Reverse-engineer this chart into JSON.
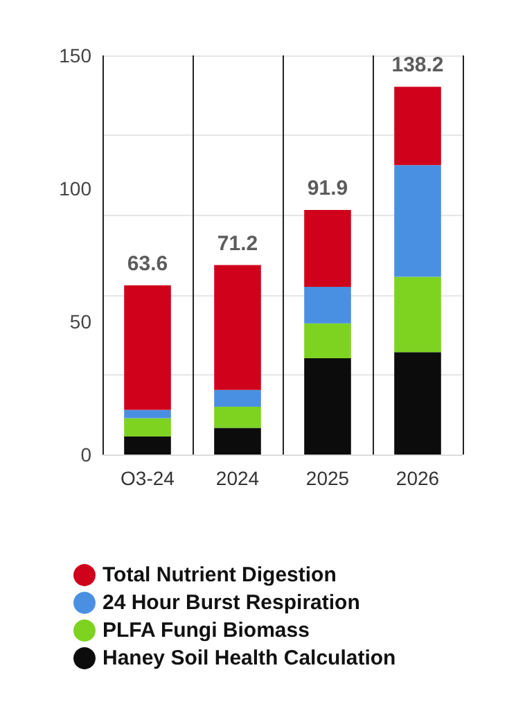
{
  "chart_data": {
    "type": "bar",
    "stacked": true,
    "categories": [
      "O3-24",
      "2024",
      "2025",
      "2026"
    ],
    "series": [
      {
        "name": "Haney Soil Health Calculation",
        "color": "#0c0c0c",
        "values": [
          6.8,
          10.0,
          36.2,
          38.5
        ]
      },
      {
        "name": "PLFA Fungi Biomass",
        "color": "#7ed321",
        "values": [
          6.9,
          8.0,
          13.1,
          28.3
        ]
      },
      {
        "name": "24 Hour Burst Respiration",
        "color": "#4a90e2",
        "values": [
          3.1,
          6.3,
          13.7,
          42.0
        ]
      },
      {
        "name": "Total Nutrient Digestion",
        "color": "#d0021b",
        "values": [
          46.8,
          46.9,
          28.9,
          29.4
        ]
      }
    ],
    "totals": [
      "63.6",
      "71.2",
      "91.9",
      "138.2"
    ],
    "ylim": [
      0,
      150
    ],
    "yticks": [
      0,
      50,
      100,
      150
    ],
    "grid": true,
    "legend": "bottom"
  }
}
